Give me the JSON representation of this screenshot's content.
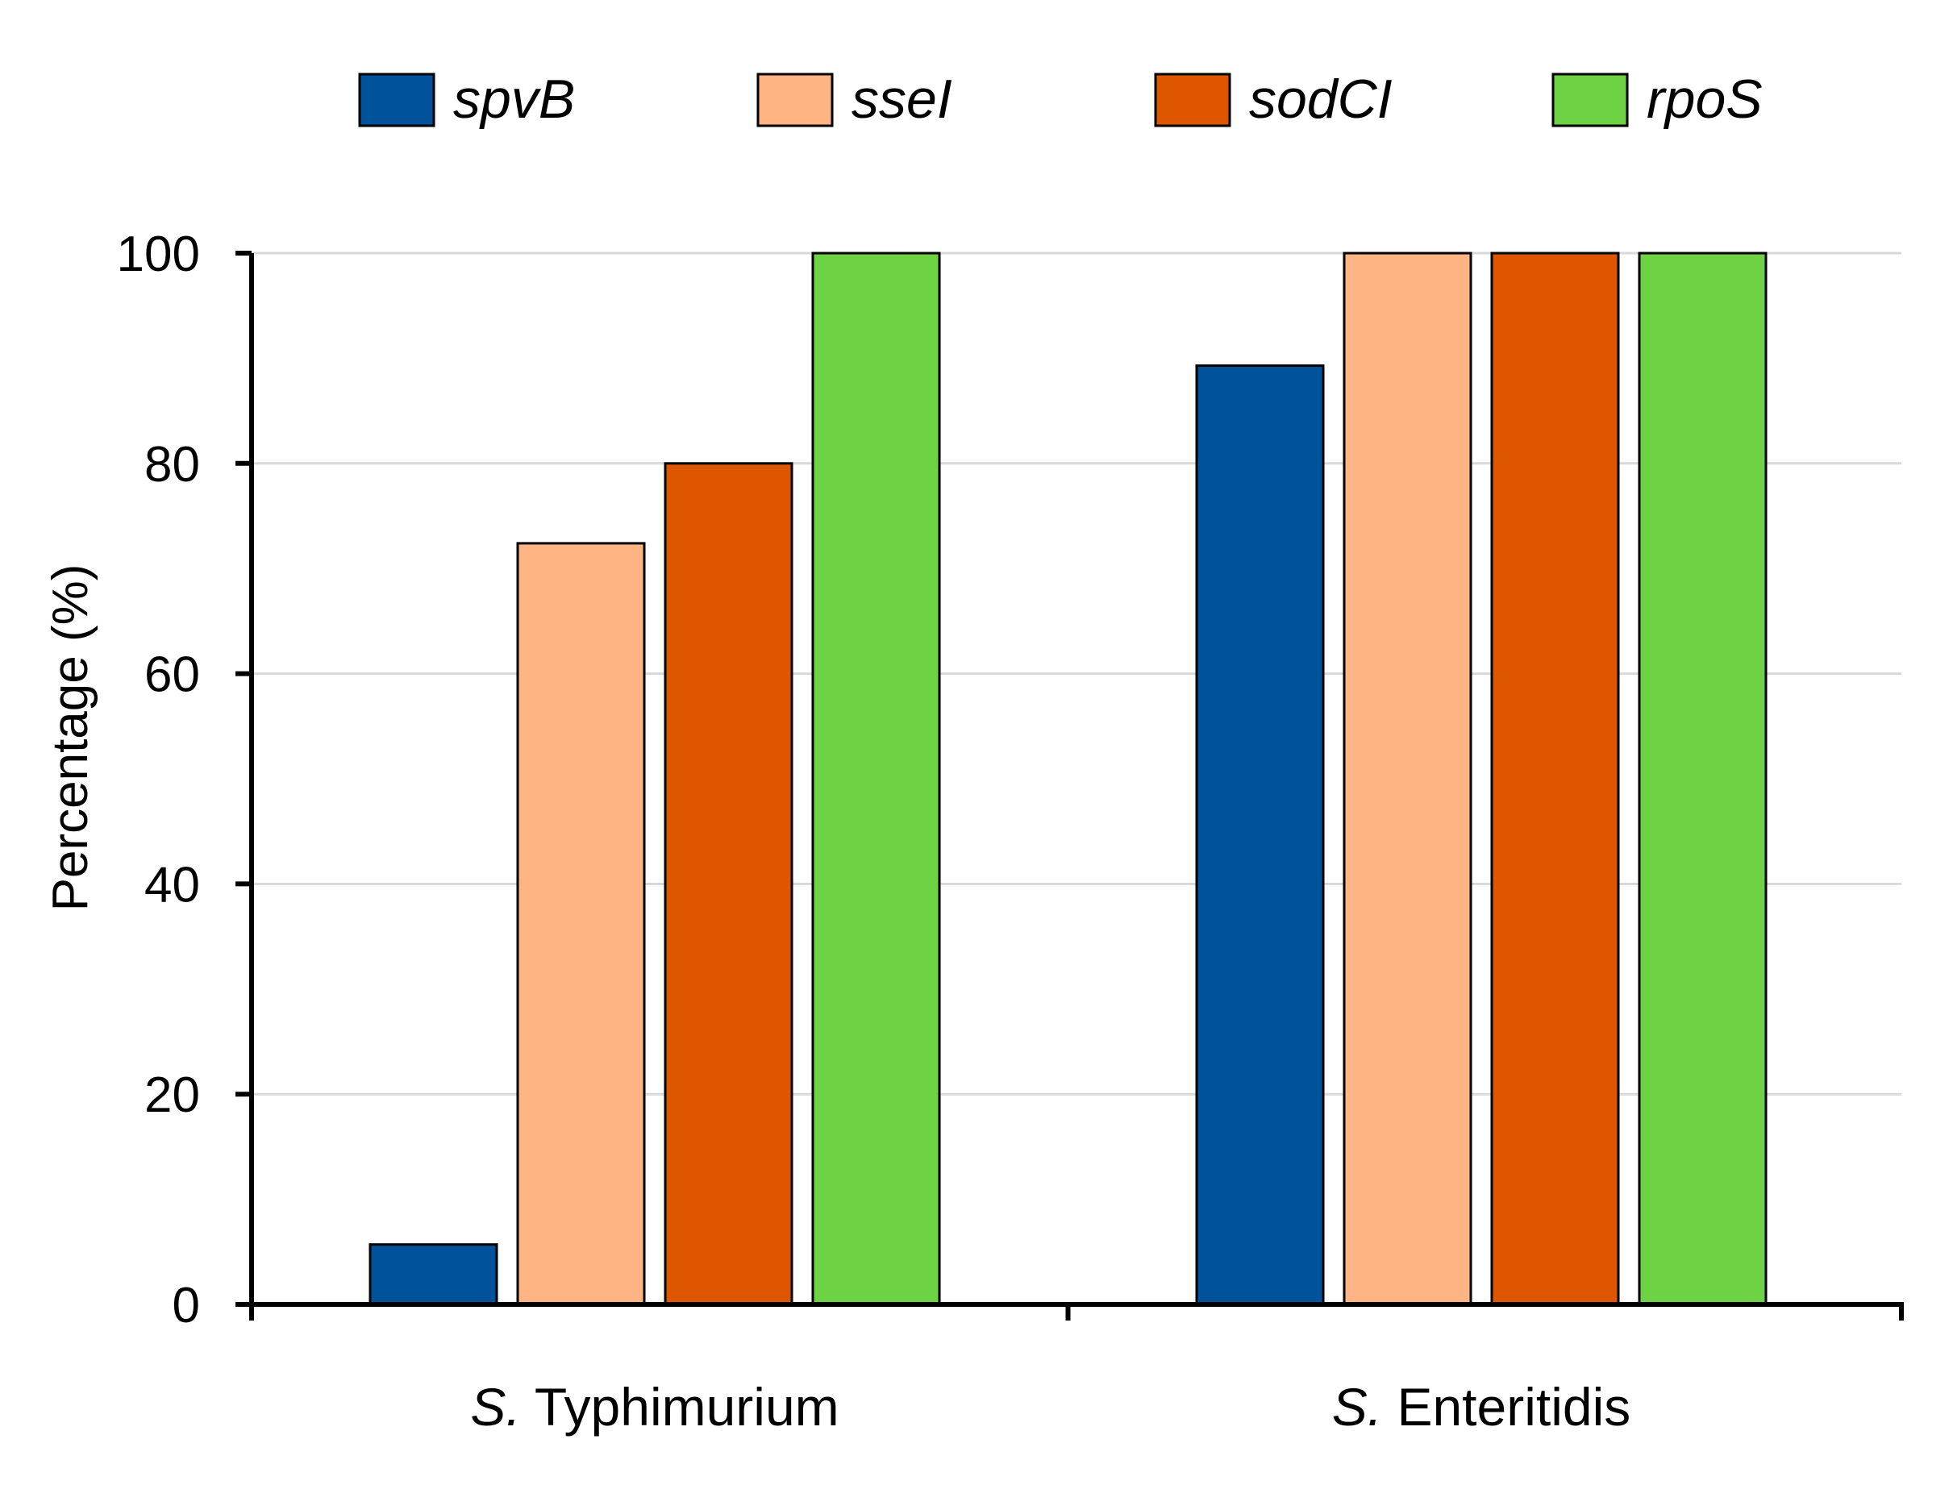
{
  "chart_data": {
    "type": "bar",
    "title": "",
    "xlabel": "",
    "ylabel": "Percentage  (%)",
    "ylim": [
      0,
      100
    ],
    "yticks": [
      0,
      20,
      40,
      60,
      80,
      100
    ],
    "grid": true,
    "legend_position": "top",
    "categories": [
      {
        "prefix": "S.",
        "name": "Typhimurium"
      },
      {
        "prefix": "S.",
        "name": "Enteritidis"
      }
    ],
    "series": [
      {
        "name": "spvB",
        "color": "#00529B",
        "values": [
          5.7,
          89.3
        ]
      },
      {
        "name": "sseI",
        "color": "#FFB484",
        "values": [
          72.4,
          100
        ]
      },
      {
        "name": "sodCI",
        "color": "#DE5600",
        "values": [
          80,
          100
        ]
      },
      {
        "name": "rpoS",
        "color": "#6DD344",
        "values": [
          100,
          100
        ]
      }
    ]
  }
}
